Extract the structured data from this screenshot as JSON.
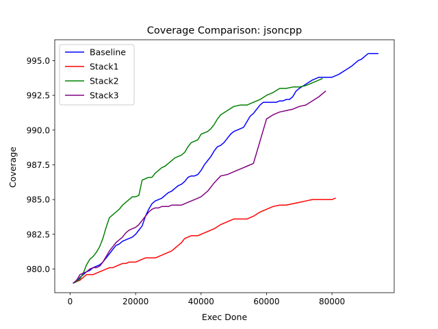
{
  "chart_data": {
    "type": "line",
    "title": "Coverage Comparison: jsoncpp",
    "xlabel": "Exec Done",
    "ylabel": "Coverage",
    "xlim": [
      -4700,
      99000
    ],
    "ylim": [
      978.3,
      996.5
    ],
    "xticks": [
      0,
      20000,
      40000,
      60000,
      80000
    ],
    "xtick_labels": [
      "0",
      "20000",
      "40000",
      "60000",
      "80000"
    ],
    "yticks": [
      980.0,
      982.5,
      985.0,
      987.5,
      990.0,
      992.5,
      995.0
    ],
    "ytick_labels": [
      "980.0",
      "982.5",
      "985.0",
      "987.5",
      "990.0",
      "992.5",
      "995.0"
    ],
    "grid": false,
    "legend_position": "top-left",
    "series": [
      {
        "name": "Baseline",
        "color": "#0000ff",
        "x": [
          1000,
          2000,
          3000,
          4000,
          5000,
          6000,
          7000,
          8000,
          9000,
          10000,
          11000,
          12000,
          13000,
          14000,
          15000,
          16000,
          17000,
          18000,
          19000,
          20000,
          21000,
          22000,
          23000,
          24000,
          25000,
          26000,
          27000,
          28000,
          29000,
          30000,
          31000,
          32000,
          33000,
          34000,
          35000,
          36000,
          37000,
          38000,
          39000,
          40000,
          41000,
          42000,
          43000,
          44000,
          45000,
          46000,
          47000,
          48000,
          49000,
          50000,
          51000,
          52000,
          53000,
          54000,
          55000,
          56000,
          57000,
          58000,
          59000,
          60000,
          61000,
          62000,
          63000,
          64000,
          65000,
          66000,
          67000,
          68000,
          69000,
          70000,
          72000,
          74000,
          76000,
          78000,
          80000,
          82000,
          84000,
          86000,
          87000,
          88000,
          89000,
          90000,
          91000,
          92000,
          93000,
          94000
        ],
        "y": [
          979.0,
          979.1,
          979.4,
          979.6,
          979.8,
          979.9,
          980.1,
          980.2,
          980.3,
          980.5,
          980.8,
          981.1,
          981.4,
          981.7,
          981.8,
          982.0,
          982.1,
          982.2,
          982.3,
          982.5,
          982.8,
          983.1,
          983.8,
          984.3,
          984.7,
          984.9,
          985.0,
          985.1,
          985.3,
          985.5,
          985.6,
          985.8,
          986.0,
          986.1,
          986.3,
          986.6,
          986.7,
          986.7,
          986.8,
          987.1,
          987.5,
          987.8,
          988.1,
          988.5,
          988.8,
          988.9,
          989.1,
          989.4,
          989.7,
          989.9,
          990.0,
          990.1,
          990.2,
          990.6,
          991.0,
          991.2,
          991.5,
          991.8,
          992.0,
          992.0,
          992.0,
          992.0,
          992.0,
          992.1,
          992.1,
          992.2,
          992.2,
          992.4,
          992.8,
          993.0,
          993.3,
          993.6,
          993.8,
          993.8,
          993.8,
          994.0,
          994.3,
          994.6,
          994.8,
          995.0,
          995.1,
          995.3,
          995.5,
          995.5,
          995.5,
          995.5
        ]
      },
      {
        "name": "Stack1",
        "color": "#ff0000",
        "x": [
          1000,
          2000,
          3000,
          4000,
          5000,
          6000,
          7000,
          8000,
          9000,
          10000,
          11000,
          12000,
          13000,
          14000,
          15000,
          16000,
          17000,
          18000,
          19000,
          20000,
          21000,
          22000,
          23000,
          24000,
          25000,
          26000,
          27000,
          28000,
          29000,
          30000,
          31000,
          32000,
          33000,
          34000,
          35000,
          36000,
          37000,
          38000,
          39000,
          40000,
          42000,
          44000,
          46000,
          48000,
          50000,
          52000,
          54000,
          56000,
          58000,
          60000,
          62000,
          64000,
          66000,
          68000,
          70000,
          72000,
          74000,
          76000,
          78000,
          80000,
          81000
        ],
        "y": [
          979.0,
          979.1,
          979.2,
          979.4,
          979.6,
          979.6,
          979.6,
          979.7,
          979.8,
          979.9,
          980.0,
          980.1,
          980.1,
          980.2,
          980.3,
          980.4,
          980.4,
          980.5,
          980.5,
          980.5,
          980.6,
          980.7,
          980.8,
          980.8,
          980.8,
          980.8,
          980.9,
          981.0,
          981.1,
          981.2,
          981.3,
          981.5,
          981.7,
          981.9,
          982.2,
          982.3,
          982.4,
          982.4,
          982.4,
          982.5,
          982.7,
          982.9,
          983.2,
          983.4,
          983.6,
          983.6,
          983.6,
          983.8,
          984.1,
          984.3,
          984.5,
          984.6,
          984.6,
          984.7,
          984.8,
          984.9,
          985.0,
          985.0,
          985.0,
          985.0,
          985.1
        ]
      },
      {
        "name": "Stack2",
        "color": "#008000",
        "x": [
          1000,
          2000,
          3000,
          4000,
          5000,
          6000,
          7000,
          8000,
          9000,
          10000,
          11000,
          12000,
          13000,
          14000,
          15000,
          16000,
          17000,
          18000,
          19000,
          20000,
          21000,
          22000,
          23000,
          24000,
          25000,
          26000,
          27000,
          28000,
          29000,
          30000,
          31000,
          32000,
          33000,
          34000,
          35000,
          36000,
          37000,
          38000,
          39000,
          40000,
          41000,
          42000,
          43000,
          44000,
          45000,
          46000,
          48000,
          50000,
          52000,
          54000,
          56000,
          58000,
          60000,
          62000,
          64000,
          66000,
          68000,
          70000,
          72000,
          74000,
          76000,
          77000
        ],
        "y": [
          979.0,
          979.1,
          979.3,
          979.7,
          980.3,
          980.7,
          980.9,
          981.2,
          981.6,
          982.2,
          983.0,
          983.7,
          983.9,
          984.1,
          984.3,
          984.6,
          984.8,
          985.0,
          985.2,
          985.2,
          985.3,
          986.4,
          986.5,
          986.6,
          986.6,
          986.9,
          987.1,
          987.3,
          987.4,
          987.6,
          987.8,
          988.0,
          988.1,
          988.2,
          988.4,
          988.8,
          989.1,
          989.2,
          989.3,
          989.7,
          989.8,
          989.9,
          990.1,
          990.4,
          990.8,
          991.1,
          991.4,
          991.7,
          991.8,
          991.8,
          992.0,
          992.2,
          992.5,
          992.7,
          993.0,
          993.0,
          993.1,
          993.1,
          993.2,
          993.4,
          993.6,
          993.7
        ]
      },
      {
        "name": "Stack3",
        "color": "#800080",
        "x": [
          1000,
          2000,
          3000,
          4000,
          5000,
          6000,
          7000,
          8000,
          9000,
          10000,
          11000,
          12000,
          13000,
          14000,
          15000,
          16000,
          17000,
          18000,
          19000,
          20000,
          21000,
          22000,
          23000,
          24000,
          25000,
          26000,
          27000,
          28000,
          29000,
          30000,
          31000,
          32000,
          33000,
          34000,
          35000,
          36000,
          37000,
          38000,
          39000,
          40000,
          42000,
          44000,
          46000,
          48000,
          50000,
          52000,
          54000,
          56000,
          58000,
          60000,
          62000,
          64000,
          66000,
          68000,
          70000,
          72000,
          74000,
          76000,
          78000
        ],
        "y": [
          979.0,
          979.2,
          979.6,
          979.7,
          979.8,
          980.0,
          980.1,
          980.1,
          980.2,
          980.5,
          980.9,
          981.3,
          981.6,
          981.9,
          982.1,
          982.3,
          982.6,
          982.8,
          982.9,
          983.0,
          983.2,
          983.5,
          983.8,
          984.1,
          984.3,
          984.4,
          984.4,
          984.5,
          984.5,
          984.5,
          984.6,
          984.6,
          984.6,
          984.6,
          984.7,
          984.8,
          984.9,
          985.0,
          985.1,
          985.2,
          985.6,
          986.2,
          986.7,
          986.8,
          987.0,
          987.2,
          987.4,
          987.6,
          989.2,
          990.8,
          991.1,
          991.3,
          991.4,
          991.5,
          991.7,
          991.8,
          992.1,
          992.4,
          992.8
        ]
      }
    ]
  }
}
